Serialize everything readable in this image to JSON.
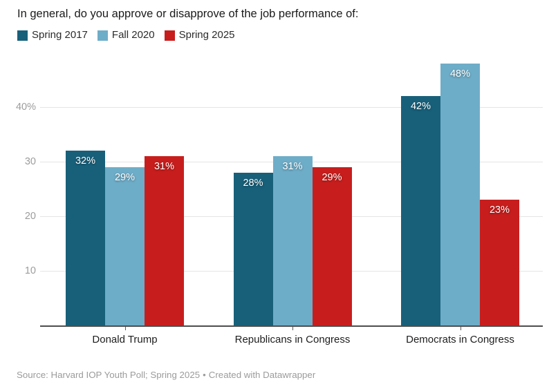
{
  "title": "In general, do you approve or disapprove of the job performance of:",
  "legend": {
    "items": [
      {
        "label": "Spring 2017",
        "color": "#18607a"
      },
      {
        "label": "Fall 2020",
        "color": "#6eadc8"
      },
      {
        "label": "Spring 2025",
        "color": "#c71e1d"
      }
    ]
  },
  "chart_data": {
    "type": "bar",
    "title": "In general, do you approve or disapprove of the job performance of:",
    "categories": [
      "Donald Trump",
      "Republicans in Congress",
      "Democrats in Congress"
    ],
    "series": [
      {
        "name": "Spring 2017",
        "color": "#18607a",
        "values": [
          32,
          28,
          42
        ]
      },
      {
        "name": "Fall 2020",
        "color": "#6eadc8",
        "values": [
          29,
          31,
          48
        ]
      },
      {
        "name": "Spring 2025",
        "color": "#c71e1d",
        "values": [
          31,
          29,
          23
        ]
      }
    ],
    "value_format": "{v}%",
    "xlabel": "",
    "ylabel": "",
    "yticks": [
      10,
      20,
      30,
      40
    ],
    "ytick_labels": [
      "10",
      "20",
      "30",
      "40%"
    ],
    "ylim": [
      0,
      49
    ],
    "grid": true,
    "legend_position": "top-left",
    "bar_label_position": "inside-top",
    "bar_label_color": "#ffffff",
    "axis_color": "#4d4d4d",
    "gridline_color": "#e4e4e4"
  },
  "footer": {
    "text": "Source: Harvard IOP Youth Poll; Spring 2025",
    "separator": "•",
    "credit": "Created with Datawrapper"
  }
}
